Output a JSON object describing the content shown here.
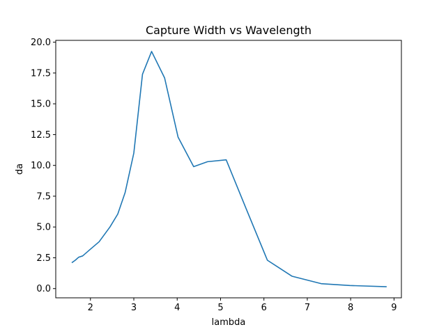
{
  "chart_data": {
    "type": "line",
    "title": "Capture Width vs Wavelength",
    "xlabel": "lambda",
    "ylabel": "da",
    "xlim": [
      1.2,
      9.17
    ],
    "ylim": [
      -0.75,
      20.15
    ],
    "xticks": [
      2,
      3,
      4,
      5,
      6,
      7,
      8,
      9
    ],
    "yticks": [
      0.0,
      2.5,
      5.0,
      7.5,
      10.0,
      12.5,
      15.0,
      17.5,
      20.0
    ],
    "ytick_labels": [
      "0.0",
      "2.5",
      "5.0",
      "7.5",
      "10.0",
      "12.5",
      "15.0",
      "17.5",
      "20.0"
    ],
    "grid": false,
    "series": [
      {
        "color": "#1f77b4",
        "x": [
          1.57,
          1.65,
          1.73,
          1.82,
          2.0,
          2.2,
          2.45,
          2.63,
          2.8,
          3.0,
          3.2,
          3.41,
          3.71,
          4.02,
          4.38,
          4.7,
          5.13,
          5.6,
          6.08,
          6.65,
          7.32,
          7.98,
          8.83
        ],
        "y": [
          2.1,
          2.3,
          2.55,
          2.65,
          3.2,
          3.8,
          5.0,
          6.05,
          7.8,
          11.0,
          17.4,
          19.25,
          17.1,
          12.3,
          9.9,
          10.3,
          10.45,
          6.4,
          2.3,
          1.0,
          0.4,
          0.25,
          0.15
        ]
      }
    ]
  }
}
